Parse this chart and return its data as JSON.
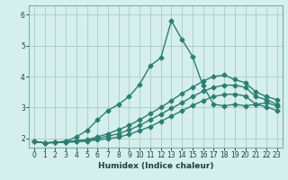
{
  "title": "",
  "xlabel": "Humidex (Indice chaleur)",
  "ylabel": "",
  "xlim": [
    -0.5,
    23.5
  ],
  "ylim": [
    1.7,
    6.3
  ],
  "yticks": [
    2,
    3,
    4,
    5,
    6
  ],
  "xtick_labels": [
    "0",
    "1",
    "2",
    "3",
    "4",
    "5",
    "6",
    "7",
    "8",
    "9",
    "10",
    "11",
    "12",
    "13",
    "14",
    "15",
    "16",
    "17",
    "18",
    "19",
    "20",
    "21",
    "22",
    "23"
  ],
  "background_color": "#d4efec",
  "grid_color": "#aecece",
  "line_color": "#2e7d73",
  "line_spiky_x": [
    0,
    1,
    2,
    3,
    4,
    5,
    6,
    7,
    8,
    9,
    10,
    11,
    12,
    13,
    14,
    15,
    16,
    17,
    18,
    19,
    20,
    21,
    22,
    23
  ],
  "line_spiky_y": [
    1.9,
    1.85,
    1.87,
    1.9,
    2.05,
    2.25,
    2.6,
    2.9,
    3.1,
    3.35,
    3.75,
    4.35,
    4.6,
    5.8,
    5.2,
    4.65,
    3.7,
    3.1,
    3.05,
    3.1,
    3.05,
    3.1,
    3.15,
    3.05
  ],
  "line_top_x": [
    0,
    1,
    2,
    3,
    4,
    5,
    6,
    7,
    8,
    9,
    10,
    11,
    12,
    13,
    14,
    15,
    16,
    17,
    18,
    19,
    20,
    21,
    22,
    23
  ],
  "line_top_y": [
    1.9,
    1.85,
    1.87,
    1.9,
    1.92,
    1.95,
    2.05,
    2.15,
    2.28,
    2.42,
    2.6,
    2.8,
    3.0,
    3.22,
    3.45,
    3.65,
    3.85,
    4.0,
    4.05,
    3.9,
    3.8,
    3.5,
    3.35,
    3.25
  ],
  "line_mid_x": [
    0,
    1,
    2,
    3,
    4,
    5,
    6,
    7,
    8,
    9,
    10,
    11,
    12,
    13,
    14,
    15,
    16,
    17,
    18,
    19,
    20,
    21,
    22,
    23
  ],
  "line_mid_y": [
    1.9,
    1.85,
    1.87,
    1.88,
    1.91,
    1.93,
    2.0,
    2.07,
    2.15,
    2.27,
    2.42,
    2.6,
    2.78,
    2.97,
    3.15,
    3.35,
    3.52,
    3.65,
    3.72,
    3.72,
    3.65,
    3.35,
    3.25,
    3.1
  ],
  "line_bot_x": [
    0,
    1,
    2,
    3,
    4,
    5,
    6,
    7,
    8,
    9,
    10,
    11,
    12,
    13,
    14,
    15,
    16,
    17,
    18,
    19,
    20,
    21,
    22,
    23
  ],
  "line_bot_y": [
    1.9,
    1.85,
    1.87,
    1.87,
    1.89,
    1.91,
    1.95,
    1.99,
    2.04,
    2.13,
    2.25,
    2.38,
    2.55,
    2.72,
    2.89,
    3.06,
    3.22,
    3.35,
    3.42,
    3.43,
    3.37,
    3.1,
    3.02,
    2.9
  ],
  "marker": "D",
  "marker_size": 2.5,
  "line_width": 1.0
}
